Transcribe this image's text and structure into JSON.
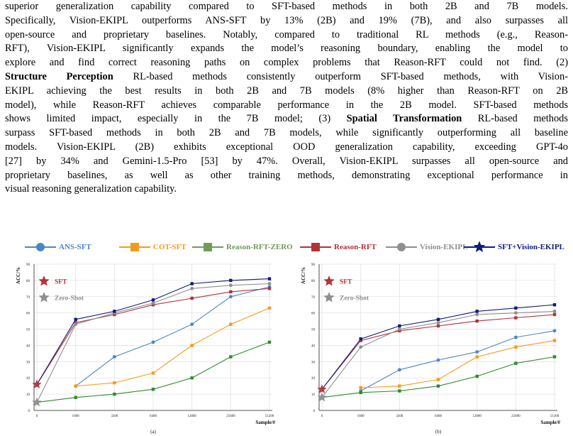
{
  "paragraph": {
    "lines": [
      "superior generalization capability compared to SFT-based methods in both 2B and 7B models.",
      "Specifically, Vision-EKIPL outperforms ANS-SFT by 13% (2B) and 19% (7B), and also surpasses all",
      "open-source and proprietary baselines. Notably, compared to traditional RL methods (e.g., Reason-",
      "RFT), Vision-EKIPL significantly expands the model’s reasoning boundary, enabling the model to",
      "explore and find correct reasoning paths on complex problems that Reason-RFT could not find. (2)",
      [
        {
          "b": "Structure Perception"
        },
        " RL-based methods consistently outperform SFT-based methods, with Vision-"
      ],
      "EKIPL achieving the best results in both 2B and 7B models (8% higher than Reason-RFT on 2B",
      "model), while Reason-RFT achieves comparable performance in the 2B model. SFT-based methods",
      [
        "shows limited impact, especially in the 7B model; (3) ",
        {
          "b": "Spatial Transformation"
        },
        " RL-based methods"
      ],
      "surpass SFT-based methods in both 2B and 7B models, while significantly outperforming all baseline",
      "models. Vision-EKIPL (2B) exhibits exceptional OOD generalization capability, exceeding GPT-4o",
      "[27] by 34% and Gemini-1.5-Pro [53] by 47%. Overall, Vision-EKIPL surpasses all open-source and",
      "proprietary baselines, as well as other training methods, demonstrating exceptional performance in",
      "visual reasoning generalization capability."
    ]
  },
  "legend": [
    {
      "label": "ANS-SFT",
      "color": "#4a86c5",
      "marker": "circle"
    },
    {
      "label": "COT-SFT",
      "color": "#f79a1b",
      "marker": "square"
    },
    {
      "label": "Reason-RFT-ZERO",
      "color": "#6f9c5a",
      "marker": "square"
    },
    {
      "label": "Reason-RFT",
      "color": "#b23338",
      "marker": "square"
    },
    {
      "label": "Vision-EKIPL",
      "color": "#8f8f8f",
      "marker": "circle"
    },
    {
      "label": "SFT+Vision-EKIPL",
      "color": "#101d78",
      "marker": "star"
    }
  ],
  "chart_data": [
    {
      "type": "line",
      "panel_label": "(a)",
      "ylabel": "ACC/%",
      "xlabel": "Sample/#",
      "categories": [
        "0",
        "1600",
        "3200",
        "6400",
        "12800",
        "25600",
        "51200"
      ],
      "y_ticks": [
        "0",
        "10",
        "20",
        "30",
        "40",
        "50",
        "60",
        "70",
        "80",
        "90"
      ],
      "ylim": [
        0,
        90
      ],
      "grid": true,
      "series": [
        {
          "name": "ANS-SFT",
          "color": "#4a86c5",
          "marker": "circle",
          "values": [
            null,
            15,
            33,
            42,
            53,
            70,
            76
          ]
        },
        {
          "name": "COT-SFT",
          "color": "#f79a1b",
          "marker": "square",
          "values": [
            null,
            15,
            17,
            23,
            40,
            53,
            63
          ]
        },
        {
          "name": "Reason-RFT-ZERO",
          "color": "#2e8b2e",
          "marker": "square",
          "values": [
            5,
            8,
            10,
            13,
            20,
            33,
            42
          ]
        },
        {
          "name": "Reason-RFT",
          "color": "#b23338",
          "marker": "square",
          "values": [
            16,
            54,
            59,
            65,
            69,
            73,
            75
          ]
        },
        {
          "name": "Vision-EKIPL",
          "color": "#8f8f8f",
          "marker": "circle",
          "values": [
            5,
            53,
            60,
            66,
            75,
            77,
            78
          ]
        },
        {
          "name": "SFT+Vision-EKIPL",
          "color": "#101d78",
          "marker": "square",
          "values": [
            16,
            56,
            61,
            68,
            78,
            80,
            81
          ]
        }
      ],
      "start_markers": [
        {
          "label": "SFT",
          "color": "#b23338",
          "value": 16
        },
        {
          "label": "Zero-Shot",
          "color": "#8f8f8f",
          "value": 5
        }
      ]
    },
    {
      "type": "line",
      "panel_label": "(b)",
      "ylabel": "ACC/%",
      "xlabel": "Sample/#",
      "categories": [
        "0",
        "1600",
        "3200",
        "6400",
        "12800",
        "25600",
        "51200"
      ],
      "y_ticks": [
        "0",
        "10",
        "20",
        "30",
        "40",
        "50",
        "60",
        "70",
        "80",
        "90"
      ],
      "ylim": [
        0,
        90
      ],
      "grid": true,
      "series": [
        {
          "name": "ANS-SFT",
          "color": "#4a86c5",
          "marker": "circle",
          "values": [
            null,
            12,
            25,
            31,
            36,
            45,
            49
          ]
        },
        {
          "name": "COT-SFT",
          "color": "#f79a1b",
          "marker": "square",
          "values": [
            null,
            14,
            15,
            19,
            33,
            39,
            43
          ]
        },
        {
          "name": "Reason-RFT-ZERO",
          "color": "#2e8b2e",
          "marker": "square",
          "values": [
            8,
            11,
            12,
            15,
            21,
            29,
            33
          ]
        },
        {
          "name": "Reason-RFT",
          "color": "#b23338",
          "marker": "square",
          "values": [
            13,
            43,
            49,
            52,
            55,
            57,
            59
          ]
        },
        {
          "name": "Vision-EKIPL",
          "color": "#8f8f8f",
          "marker": "circle",
          "values": [
            8,
            39,
            50,
            54,
            59,
            60,
            61
          ]
        },
        {
          "name": "SFT+Vision-EKIPL",
          "color": "#101d78",
          "marker": "square",
          "values": [
            13,
            44,
            52,
            56,
            61,
            63,
            65
          ]
        }
      ],
      "start_markers": [
        {
          "label": "SFT",
          "color": "#b23338",
          "value": 13
        },
        {
          "label": "Zero-Shot",
          "color": "#8f8f8f",
          "value": 8
        }
      ]
    }
  ]
}
